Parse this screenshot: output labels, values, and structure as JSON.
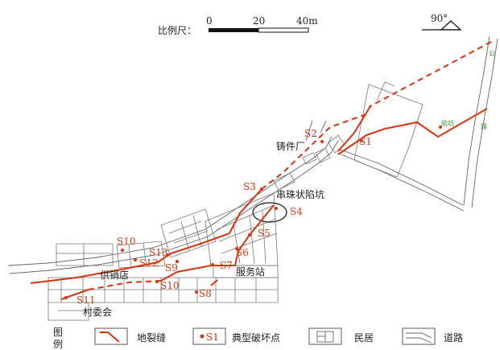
{
  "scale": {
    "title": "比例尺：",
    "ticks": [
      "0",
      "20",
      "40m"
    ]
  },
  "north": {
    "label": "90°"
  },
  "labels": {
    "foundry": "铸件厂",
    "sinkhole": "串珠状陷坑",
    "service_station": "服务站",
    "supply_store": "供销店",
    "village_committee": "村委会",
    "pit": "陷坑",
    "road_char_1": "公",
    "road_char_2": "路"
  },
  "points": [
    "S1",
    "S2",
    "S3",
    "S4",
    "S5",
    "S6",
    "S7",
    "S8",
    "S9",
    "S10",
    "S10",
    "S11",
    "S12",
    "S13"
  ],
  "legend": {
    "title_1": "图",
    "title_2": "例",
    "items": [
      {
        "label": "地裂缝",
        "icon": "crack-line"
      },
      {
        "label": "S1",
        "icon": "damage-point"
      },
      {
        "label": "典型破坏点",
        "icon": "damage-point"
      },
      {
        "label": "民居",
        "icon": "house-grid"
      },
      {
        "label": "道路",
        "icon": "road-lines"
      }
    ]
  },
  "colors": {
    "crack": "#d9320e",
    "labels": "#d4380d",
    "lines": "#777777"
  }
}
